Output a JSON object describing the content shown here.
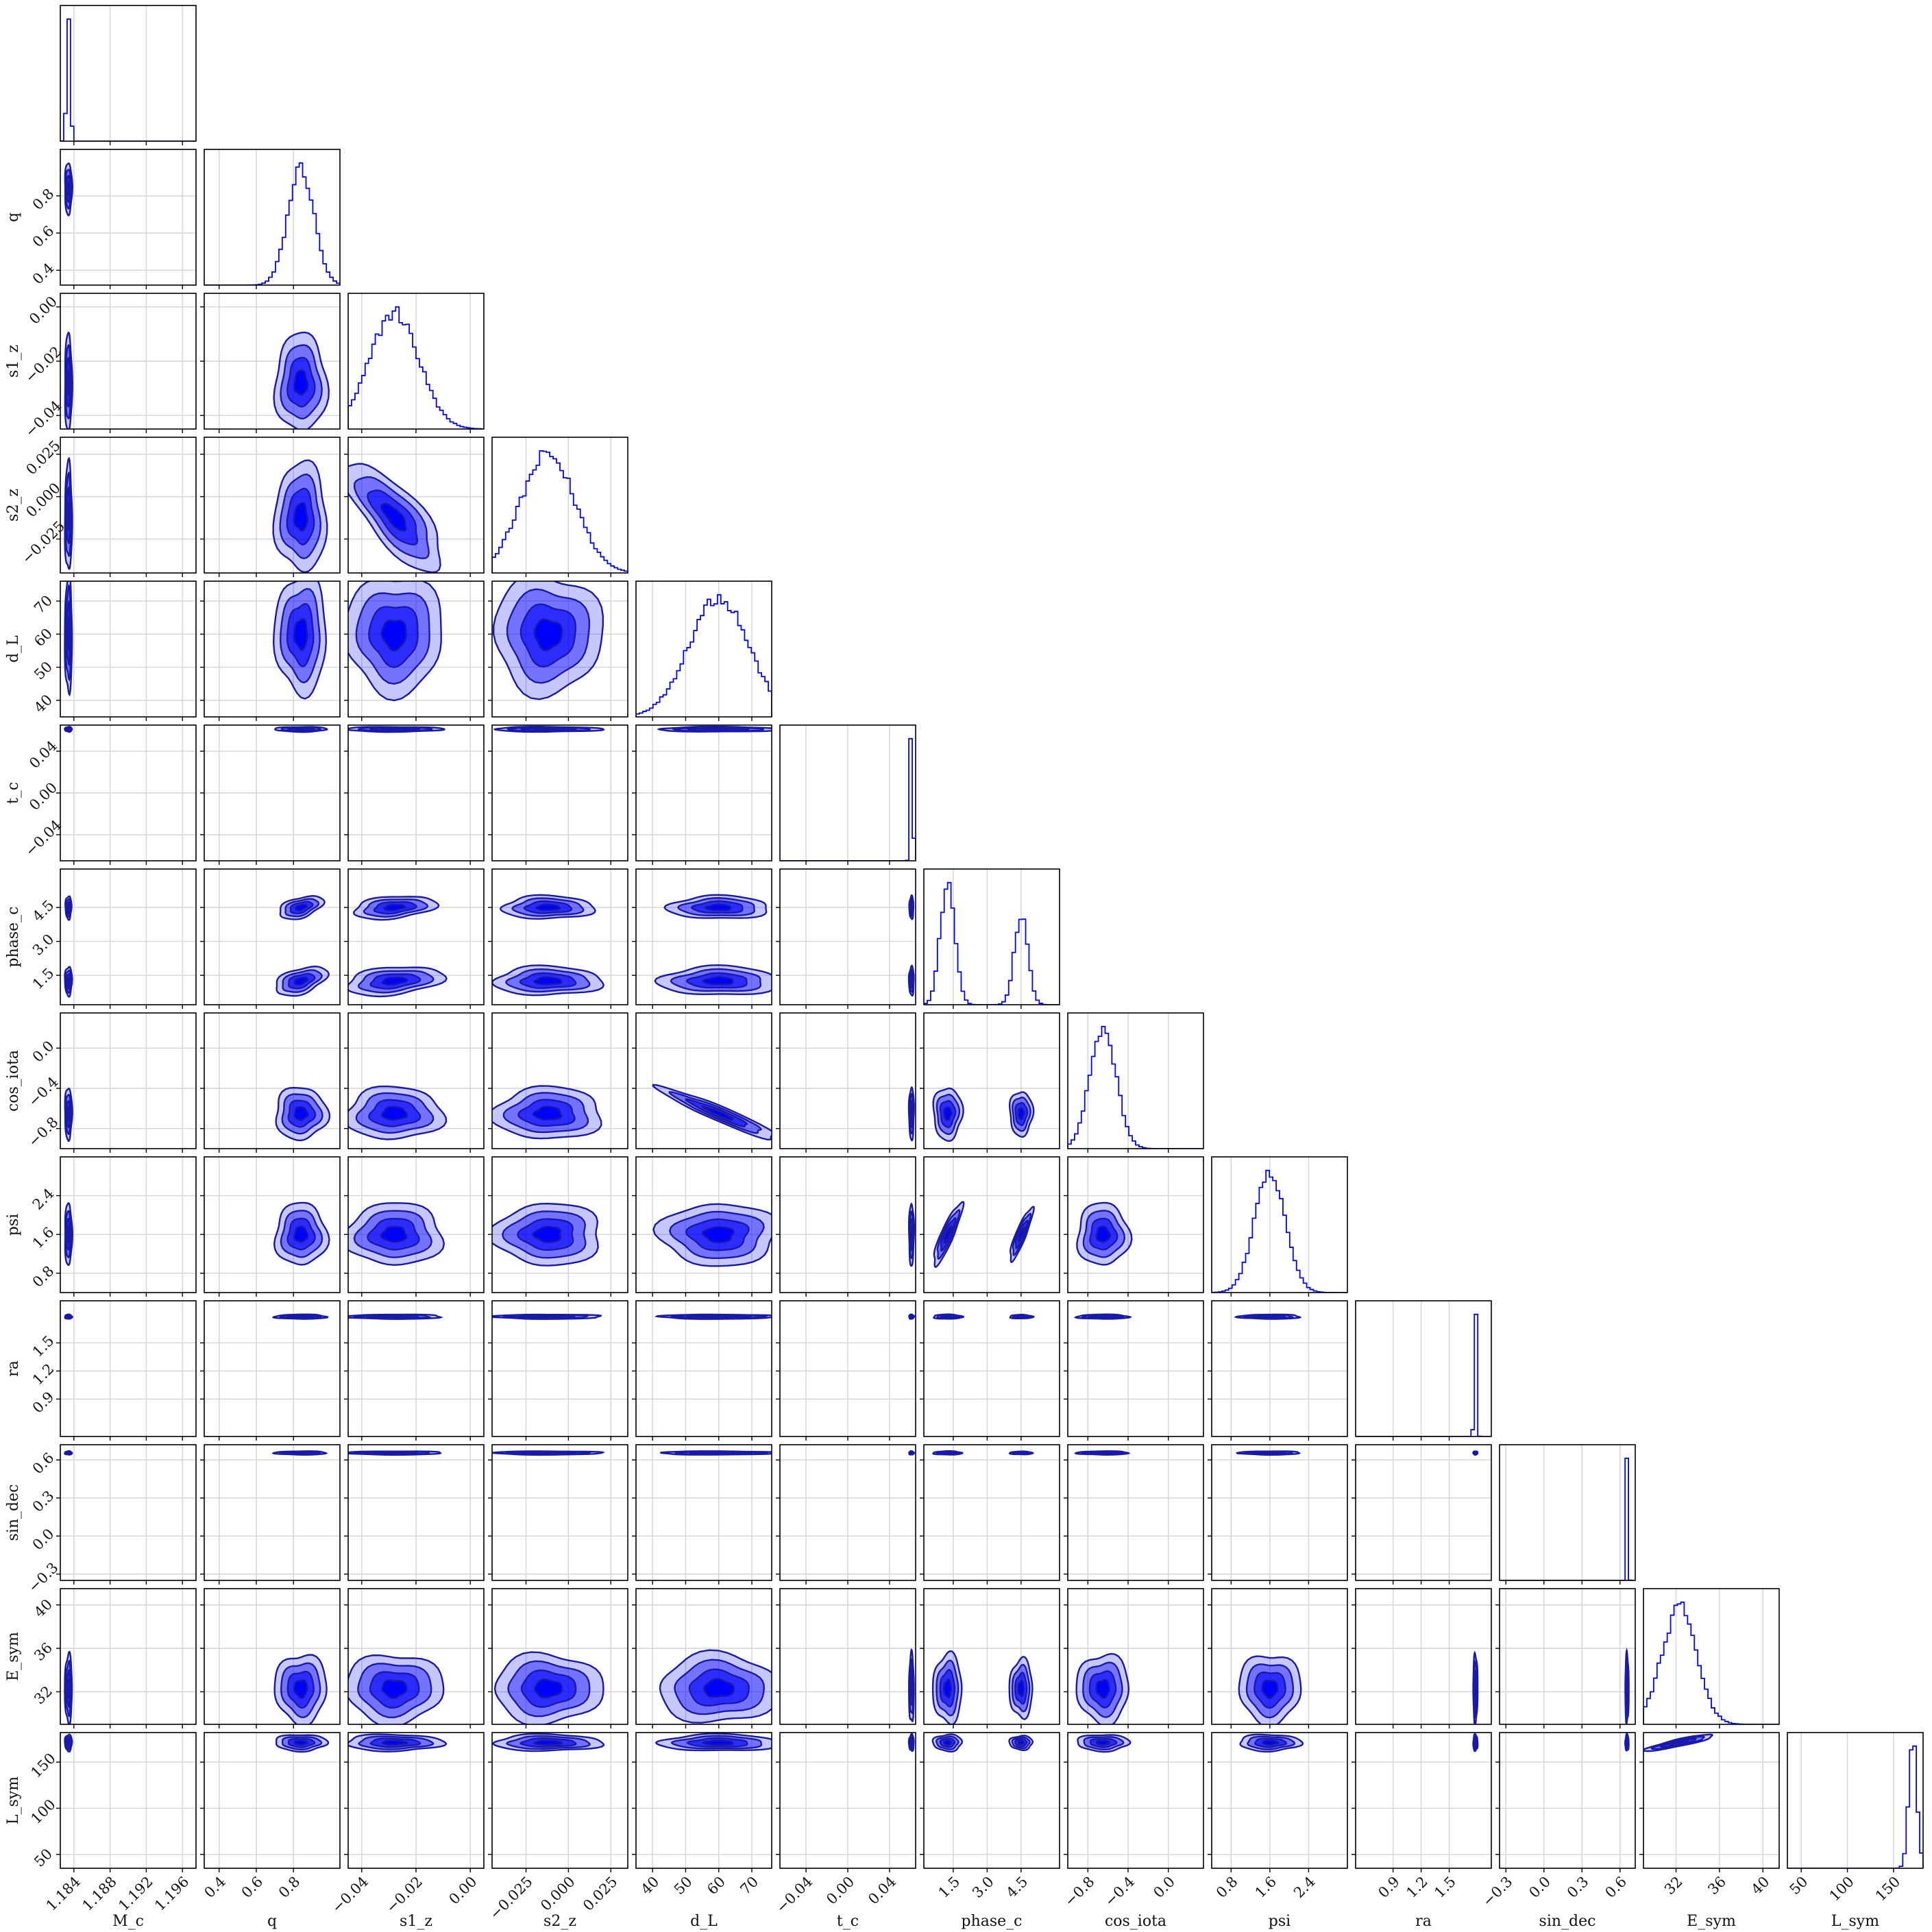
{
  "chart_data": {
    "type": "corner",
    "parameters": [
      "M_c",
      "q",
      "s1_z",
      "s2_z",
      "d_L",
      "t_c",
      "phase_c",
      "cos_iota",
      "psi",
      "ra",
      "sin_dec",
      "E_sym",
      "L_sym"
    ],
    "ranges": [
      [
        1.1825,
        1.1975
      ],
      [
        0.32,
        1.05
      ],
      [
        -0.045,
        0.005
      ],
      [
        -0.045,
        0.035
      ],
      [
        35,
        76
      ],
      [
        -0.065,
        0.065
      ],
      [
        0.2,
        6.2
      ],
      [
        -1.0,
        0.35
      ],
      [
        0.4,
        3.2
      ],
      [
        0.5,
        1.95
      ],
      [
        -0.35,
        0.72
      ],
      [
        29.0,
        41.5
      ],
      [
        35,
        182
      ]
    ],
    "ticks": [
      [
        1.184,
        1.188,
        1.192,
        1.196
      ],
      [
        0.4,
        0.6,
        0.8
      ],
      [
        -0.04,
        -0.02,
        0.0
      ],
      [
        -0.025,
        0.0,
        0.025
      ],
      [
        40,
        50,
        60,
        70
      ],
      [
        -0.04,
        0.0,
        0.04
      ],
      [
        1.5,
        3.0,
        4.5
      ],
      [
        -0.8,
        -0.4,
        0.0
      ],
      [
        0.8,
        1.6,
        2.4
      ],
      [
        0.9,
        1.2,
        1.5
      ],
      [
        -0.3,
        0.0,
        0.3,
        0.6
      ],
      [
        32,
        36,
        40
      ],
      [
        50,
        100,
        150
      ]
    ],
    "tick_labels": [
      [
        "1.184",
        "1.188",
        "1.192",
        "1.196"
      ],
      [
        "0.4",
        "0.6",
        "0.8"
      ],
      [
        "−0.04",
        "−0.02",
        "0.00"
      ],
      [
        "−0.025",
        "0.000",
        "0.025"
      ],
      [
        "40",
        "50",
        "60",
        "70"
      ],
      [
        "−0.04",
        "0.00",
        "0.04"
      ],
      [
        "1.5",
        "3.0",
        "4.5"
      ],
      [
        "−0.8",
        "−0.4",
        "0.0"
      ],
      [
        "0.8",
        "1.6",
        "2.4"
      ],
      [
        "0.9",
        "1.2",
        "1.5"
      ],
      [
        "−0.3",
        "0.0",
        "0.3",
        "0.6"
      ],
      [
        "32",
        "36",
        "40"
      ],
      [
        "50",
        "100",
        "150"
      ]
    ],
    "modes": [
      [
        {
          "m": 1.1834,
          "s": 0.0002,
          "w": 1
        }
      ],
      [
        {
          "m": 0.84,
          "s": 0.07,
          "w": 1
        }
      ],
      [
        {
          "m": -0.028,
          "s": 0.009,
          "w": 1
        }
      ],
      [
        {
          "m": -0.012,
          "s": 0.016,
          "w": 1
        }
      ],
      [
        {
          "m": 60,
          "s": 9,
          "w": 1
        }
      ],
      [
        {
          "m": 0.061,
          "s": 0.0012,
          "w": 1
        }
      ],
      [
        {
          "m": 1.25,
          "s": 0.32,
          "w": 0.6
        },
        {
          "m": 4.5,
          "s": 0.3,
          "w": 0.4
        }
      ],
      [
        {
          "m": -0.65,
          "s": 0.13,
          "w": 1
        }
      ],
      [
        {
          "m": 1.6,
          "s": 0.32,
          "w": 1
        }
      ],
      [
        {
          "m": 1.78,
          "s": 0.012,
          "w": 1
        }
      ],
      [
        {
          "m": 0.655,
          "s": 0.007,
          "w": 1
        }
      ],
      [
        {
          "m": 32.3,
          "s": 1.6,
          "w": 1
        }
      ],
      [
        {
          "m": 171,
          "s": 4.5,
          "w": 1
        }
      ]
    ],
    "correlations": [
      {
        "x": "d_L",
        "y": "cos_iota",
        "rho": -0.95
      },
      {
        "x": "s1_z",
        "y": "s2_z",
        "rho": -0.75
      },
      {
        "x": "phase_c",
        "y": "psi",
        "rho": 0.88
      },
      {
        "x": "E_sym",
        "y": "L_sym",
        "rho": 0.9
      },
      {
        "x": "q",
        "y": "phase_c",
        "rho": 0.45
      },
      {
        "x": "s1_z",
        "y": "phase_c",
        "rho": 0.3
      }
    ],
    "contour_levels": 4,
    "color": "#0000ff",
    "grid": true,
    "histtype": "step"
  }
}
